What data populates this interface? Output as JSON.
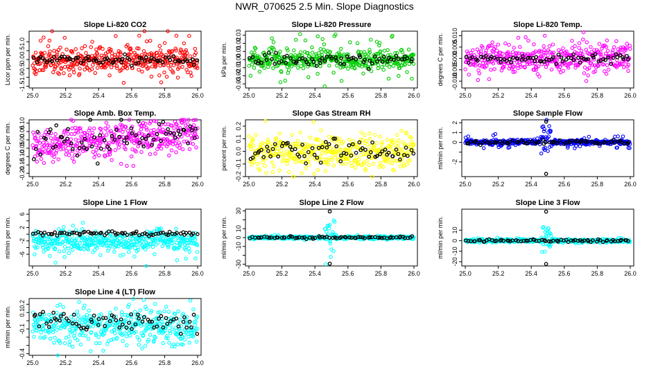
{
  "main_title": "NWR_070625  2.5 Min. Slope Diagnostics",
  "black_color": "#000000",
  "chart_data": [
    {
      "type": "scatter",
      "title": "Slope Li-820 CO2",
      "ylabel": "Licor ppm per min.",
      "color": "#ff0000",
      "xlim": [
        25.0,
        26.0
      ],
      "xticks": [
        "25.0",
        "25.2",
        "25.4",
        "25.6",
        "25.8",
        "26.0"
      ],
      "ylim": [
        -1.6,
        1.6
      ],
      "yticks": [
        -1.5,
        -1.0,
        -0.5,
        0.0,
        0.5,
        1.0
      ],
      "ytick_labels": [
        "-1.5",
        "-1.0",
        "-0.5",
        "0.0",
        "0.5",
        "1.0"
      ],
      "noise": 0.35,
      "outlier_amp": 1.2,
      "spike": 0,
      "black_noise": 0.12,
      "seed": 11
    },
    {
      "type": "scatter",
      "title": "Slope Li-820 Pressure",
      "ylabel": "kPa per min.",
      "color": "#00cc00",
      "xlim": [
        25.0,
        26.0
      ],
      "xticks": [
        "25.0",
        "25.2",
        "25.4",
        "25.6",
        "25.8",
        "26.0"
      ],
      "ylim": [
        -0.035,
        0.035
      ],
      "yticks": [
        -0.03,
        -0.02,
        -0.01,
        0.0,
        0.01,
        0.02,
        0.03
      ],
      "ytick_labels": [
        "-0.03",
        "-0.02",
        "-0.01",
        "0.00",
        "0.01",
        "0.02",
        "0.03"
      ],
      "noise": 0.006,
      "outlier_amp": 0.025,
      "spike": 0,
      "black_noise": 0.004,
      "seed": 23
    },
    {
      "type": "scatter",
      "title": "Slope Li-820 Temp.",
      "ylabel": "degrees C per min.",
      "color": "#ff00ff",
      "xlim": [
        25.0,
        26.0
      ],
      "xticks": [
        "25.0",
        "25.2",
        "25.4",
        "25.6",
        "25.8",
        "26.0"
      ],
      "ylim": [
        -0.013,
        0.012
      ],
      "yticks": [
        -0.01,
        -0.005,
        0.0,
        0.005,
        0.01
      ],
      "ytick_labels": [
        "-0.010",
        "-0.005",
        "0.000",
        "0.005",
        "0.010"
      ],
      "noise": 0.003,
      "outlier_amp": 0.009,
      "spike": 0,
      "black_noise": 0.001,
      "seed": 37
    },
    {
      "type": "scatter",
      "title": "Slope Amb. Box Temp.",
      "ylabel": "degrees C per min.",
      "color": "#ff00ff",
      "xlim": [
        25.0,
        26.0
      ],
      "xticks": [
        "25.0",
        "25.2",
        "25.4",
        "25.6",
        "25.8",
        "26.0"
      ],
      "ylim": [
        -0.22,
        0.12
      ],
      "yticks": [
        -0.2,
        -0.15,
        -0.1,
        -0.05,
        0.0,
        0.05,
        0.1
      ],
      "ytick_labels": [
        "-0.20",
        "-0.15",
        "-0.10",
        "-0.05",
        "0.00",
        "0.05",
        "0.10"
      ],
      "noise": 0.05,
      "outlier_amp": 0.09,
      "spike": 0,
      "black_noise": 0.05,
      "trend": 0.07,
      "seed": 41
    },
    {
      "type": "scatter",
      "title": "Slope Gas Stream RH",
      "ylabel": "percent per min.",
      "color": "#ffff00",
      "xlim": [
        25.0,
        26.0
      ],
      "xticks": [
        "25.0",
        "25.2",
        "25.4",
        "25.6",
        "25.8",
        "26.0"
      ],
      "ylim": [
        -0.2,
        0.25
      ],
      "yticks": [
        -0.2,
        -0.1,
        0.0,
        0.1,
        0.2
      ],
      "ytick_labels": [
        "-0.2",
        "-0.1",
        "0.0",
        "0.1",
        "0.2"
      ],
      "noise": 0.07,
      "outlier_amp": 0.16,
      "spike": 0,
      "black_noise": 0.05,
      "seed": 53
    },
    {
      "type": "scatter",
      "title": "Slope Sample Flow",
      "ylabel": "ml/min per min.",
      "color": "#0000ff",
      "xlim": [
        25.0,
        26.0
      ],
      "xticks": [
        "25.0",
        "25.2",
        "25.4",
        "25.6",
        "25.8",
        "26.0"
      ],
      "ylim": [
        -3.5,
        2.3
      ],
      "yticks": [
        -2,
        -1,
        0,
        1,
        2
      ],
      "ytick_labels": [
        "-2",
        "",
        "0",
        "1",
        "2"
      ],
      "noise": 0.12,
      "outlier_amp": 0.6,
      "spike": 2.5,
      "black_noise": 0.1,
      "seed": 67
    },
    {
      "type": "scatter",
      "title": "Slope Line 1 Flow",
      "ylabel": "ml/min per min.",
      "color": "#00ffff",
      "xlim": [
        25.0,
        26.0
      ],
      "xticks": [
        "25.0",
        "25.2",
        "25.4",
        "25.6",
        "25.8",
        "26.0"
      ],
      "ylim": [
        -9.5,
        7.5
      ],
      "yticks": [
        -6,
        -4,
        -2,
        0,
        2,
        4,
        6
      ],
      "ytick_labels": [
        "-6",
        "",
        "-2",
        "",
        "2",
        "",
        "6"
      ],
      "noise": 1.6,
      "outlier_amp": 5.0,
      "spike": 0,
      "black_noise": 0.3,
      "offset": -2.2,
      "black_offset": 0.2,
      "seed": 79
    },
    {
      "type": "scatter",
      "title": "Slope Line 2 Flow",
      "ylabel": "ml/min per min.",
      "color": "#00ffff",
      "xlim": [
        25.0,
        26.0
      ],
      "xticks": [
        "25.0",
        "25.2",
        "25.4",
        "25.6",
        "25.8",
        "26.0"
      ],
      "ylim": [
        -32,
        32
      ],
      "yticks": [
        -30,
        -20,
        -10,
        0,
        10,
        20,
        30
      ],
      "ytick_labels": [
        "-30",
        "",
        "-10",
        "0",
        "10",
        "",
        "30"
      ],
      "noise": 0.8,
      "outlier_amp": 2.5,
      "spike": 28,
      "black_noise": 0.6,
      "seed": 89
    },
    {
      "type": "scatter",
      "title": "Slope Line 3 Flow",
      "ylabel": "ml/min per min.",
      "color": "#00ffff",
      "xlim": [
        25.0,
        26.0
      ],
      "xticks": [
        "25.0",
        "25.2",
        "25.4",
        "25.6",
        "25.8",
        "26.0"
      ],
      "ylim": [
        -24,
        30
      ],
      "yticks": [
        -20,
        -10,
        0,
        10
      ],
      "ytick_labels": [
        "-20",
        "-10",
        "0",
        "10"
      ],
      "noise": 0.8,
      "outlier_amp": 2.5,
      "spike": 26,
      "black_noise": 0.6,
      "seed": 97
    },
    {
      "type": "scatter",
      "title": "Slope Line 4 (LT) Flow",
      "ylabel": "ml/min per min.",
      "color": "#00ffff",
      "xlim": [
        25.0,
        26.0
      ],
      "xticks": [
        "25.0",
        "25.2",
        "25.4",
        "25.6",
        "25.8",
        "26.0"
      ],
      "ylim": [
        -0.42,
        0.27
      ],
      "yticks": [
        -0.4,
        -0.3,
        -0.2,
        -0.1,
        0.0,
        0.1,
        0.2
      ],
      "ytick_labels": [
        "-0.4",
        "",
        "",
        "-0.1",
        "",
        "0.1",
        "0.2"
      ],
      "noise": 0.11,
      "outlier_amp": 0.22,
      "spike": 0,
      "black_noise": 0.07,
      "offset": -0.07,
      "seed": 103
    }
  ]
}
